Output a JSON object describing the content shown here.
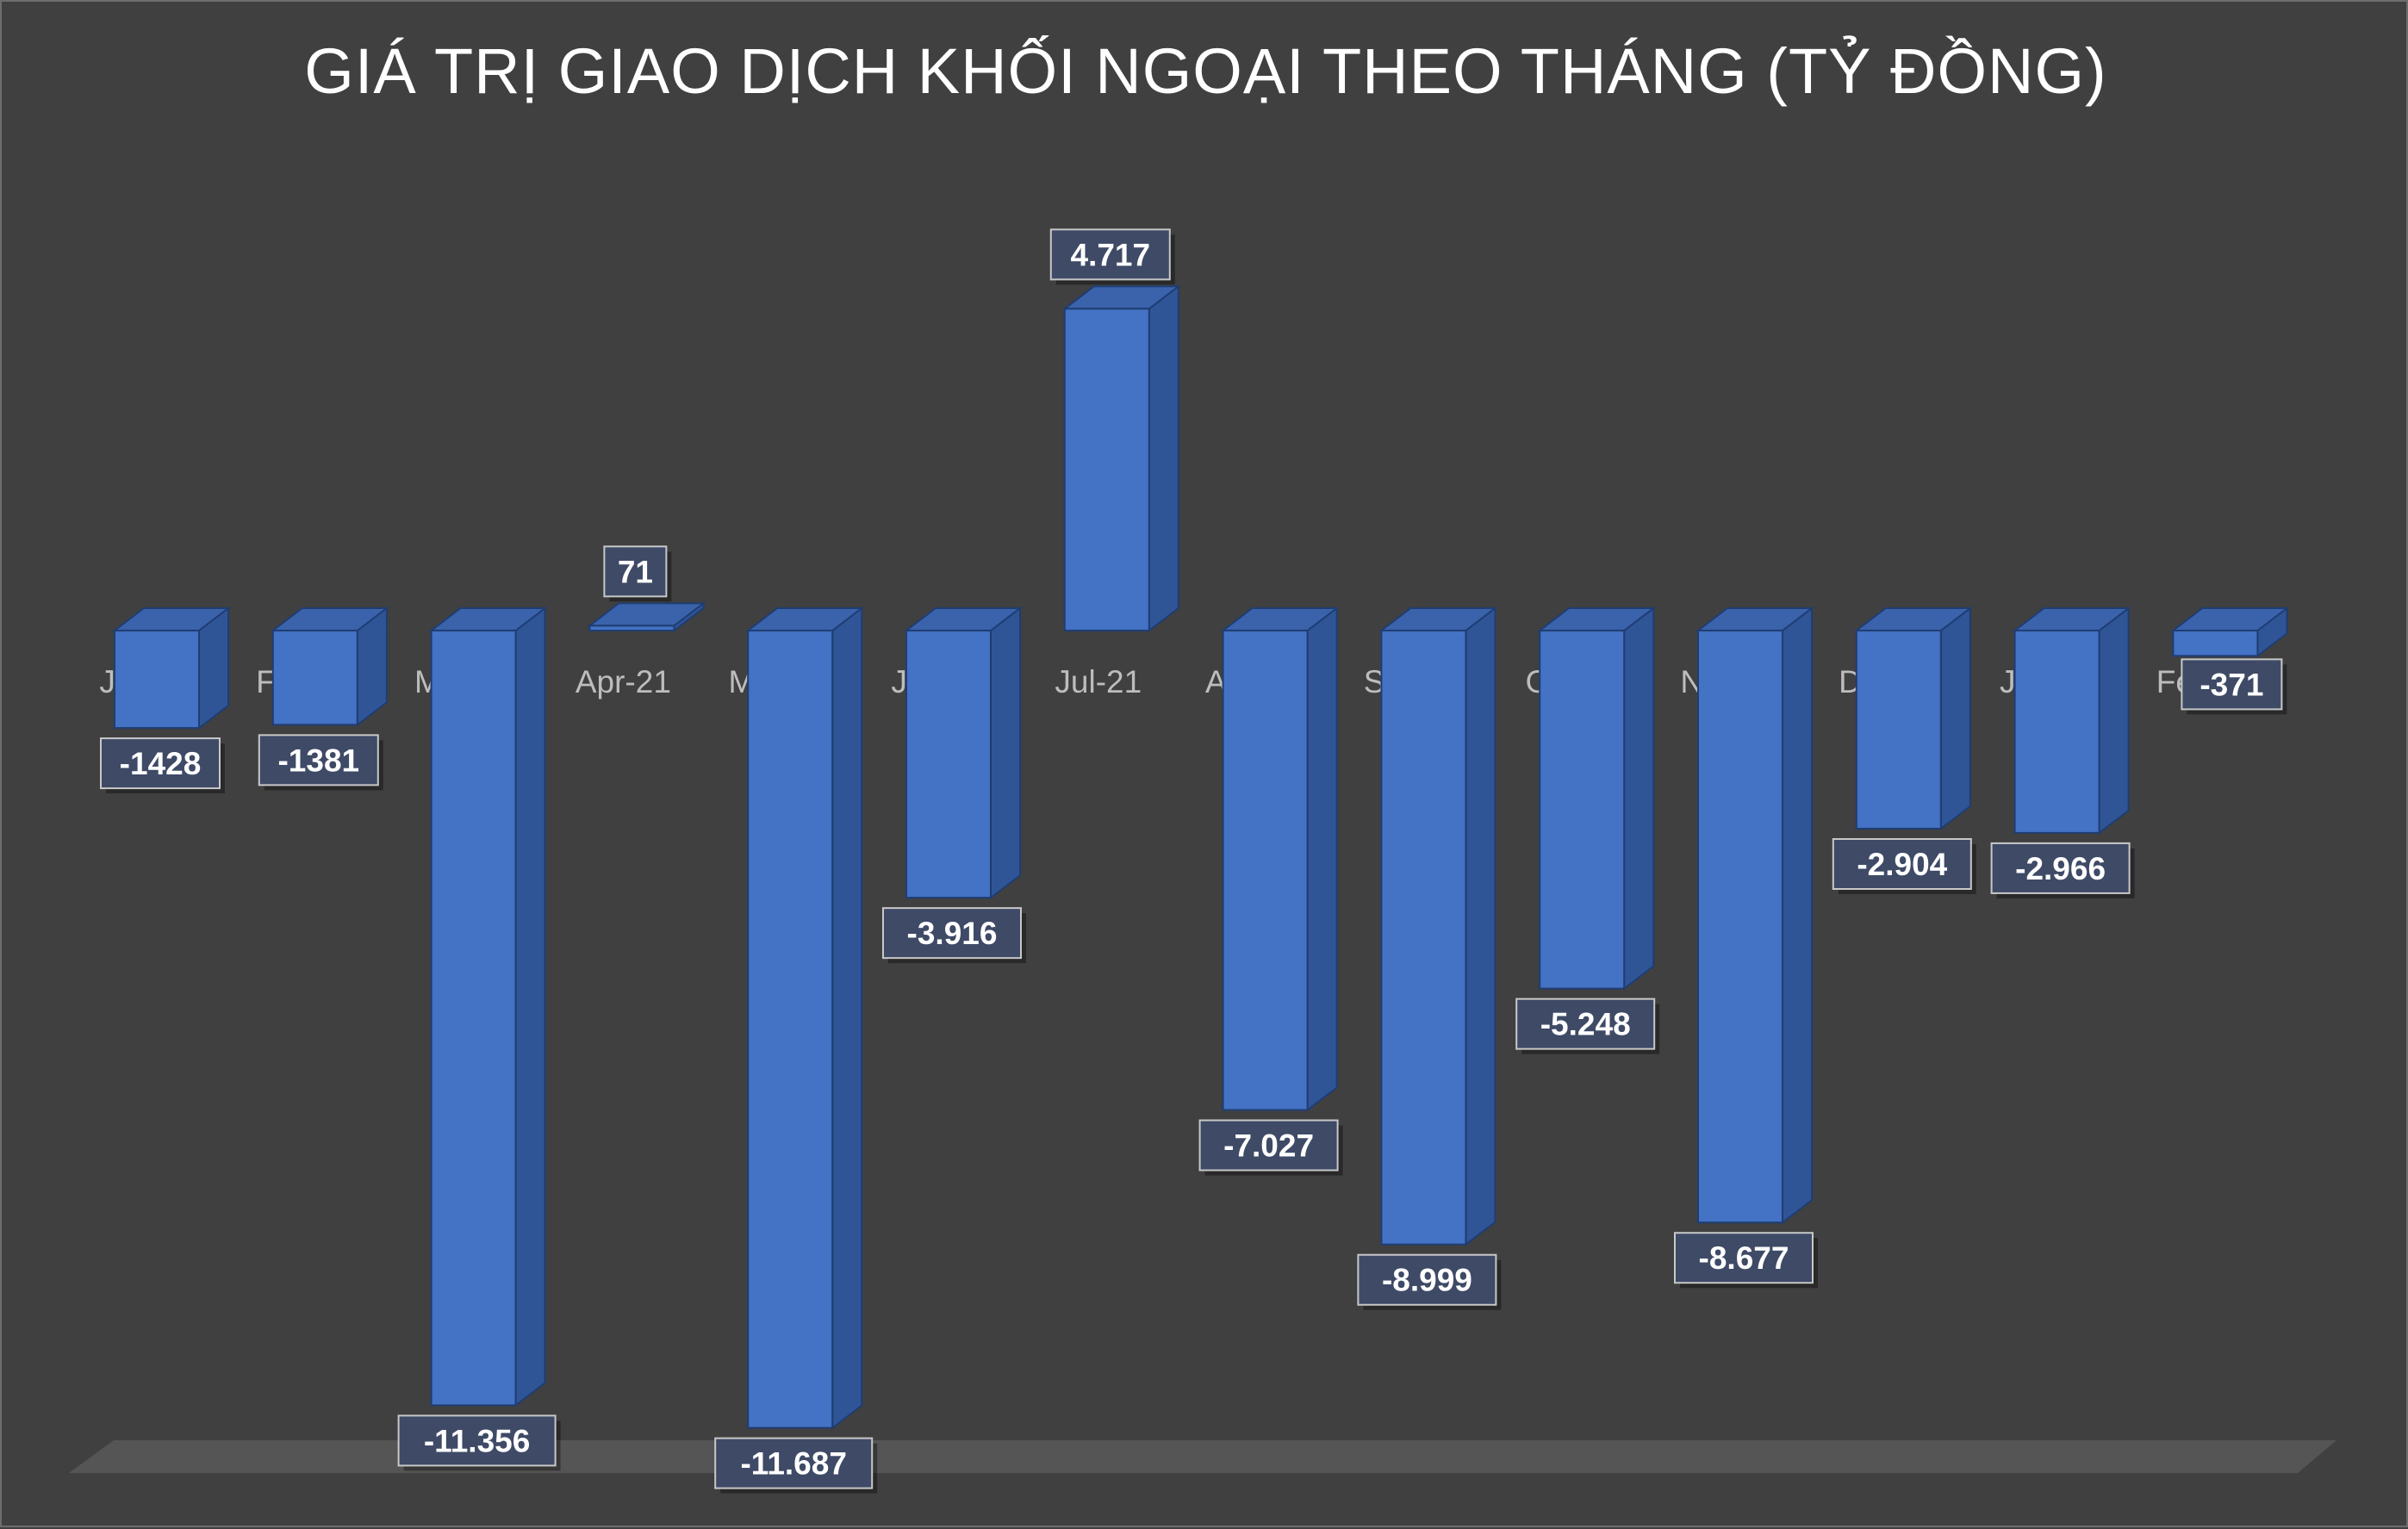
{
  "chart_data": {
    "type": "bar",
    "title": "GIÁ TRỊ GIAO DỊCH KHỐI NGOẠI THEO THÁNG (TỶ ĐỒNG)",
    "xlabel": "",
    "ylabel": "",
    "categories": [
      "Jan-21",
      "Feb-21",
      "Mar-21",
      "Apr-21",
      "May-21",
      "Jun-21",
      "Jul-21",
      "Aug-21",
      "Sep-21",
      "Oct-21",
      "Nov-21",
      "Dec-21",
      "Jan-22",
      "Feb-22"
    ],
    "values": [
      -1428,
      -1381,
      -11356,
      71,
      -11687,
      -3916,
      4717,
      -7027,
      -8999,
      -5248,
      -8677,
      -2904,
      -2966,
      -371
    ],
    "value_labels": [
      "-1428",
      "-1381",
      "-11.356",
      "71",
      "-11.687",
      "-3.916",
      "4.717",
      "-7.027",
      "-8.999",
      "-5.248",
      "-8.677",
      "-2.904",
      "-2.966",
      "-371"
    ],
    "ylim": [
      -12000,
      5000
    ],
    "grid": false,
    "legend": "none",
    "style": "3d-column",
    "colors": {
      "background": "#404040",
      "bar_front": "#4472c4",
      "bar_side": "#2f5597",
      "bar_top": "#3a63ab",
      "label_box": "#3e4a66",
      "label_border": "#c8c8c8",
      "floor": "#595959"
    }
  }
}
